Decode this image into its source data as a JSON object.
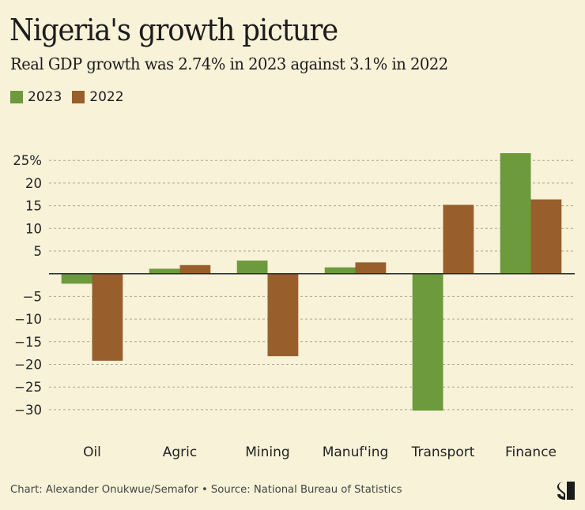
{
  "header": {
    "title": "Nigeria's growth picture",
    "subtitle": "Real GDP growth was 2.74% in 2023 against 3.1% in 2022"
  },
  "legend": [
    {
      "label": "2023",
      "color": "#6c9a3c"
    },
    {
      "label": "2022",
      "color": "#985f2c"
    }
  ],
  "footer": {
    "credit": "Chart: Alexander Onukwue/Semafor • Source: National Bureau of Statistics"
  },
  "logo": {
    "icon": "semafor-s-logo"
  },
  "chart_data": {
    "type": "bar",
    "title": "Nigeria's growth picture",
    "subtitle": "Real GDP growth was 2.74% in 2023 against 3.1% in 2022",
    "xlabel": "",
    "ylabel": "",
    "categories": [
      "Oil",
      "Agric",
      "Mining",
      "Manuf'ing",
      "Transport",
      "Finance"
    ],
    "series": [
      {
        "name": "2023",
        "color": "#6c9a3c",
        "values": [
          -2.2,
          1.1,
          2.9,
          1.4,
          -30.2,
          26.6
        ]
      },
      {
        "name": "2022",
        "color": "#985f2c",
        "values": [
          -19.2,
          1.9,
          -18.2,
          2.5,
          15.2,
          16.4
        ]
      }
    ],
    "ylim": [
      -33,
      27
    ],
    "yticks": [
      25,
      20,
      15,
      10,
      5,
      -5,
      -10,
      -15,
      -20,
      -25,
      -30
    ],
    "ytick_labels": [
      "25%",
      "20",
      "15",
      "10",
      "5",
      "−5",
      "−10",
      "−15",
      "−20",
      "−25",
      "−30"
    ],
    "grid": true,
    "legend_position": "top-left"
  }
}
